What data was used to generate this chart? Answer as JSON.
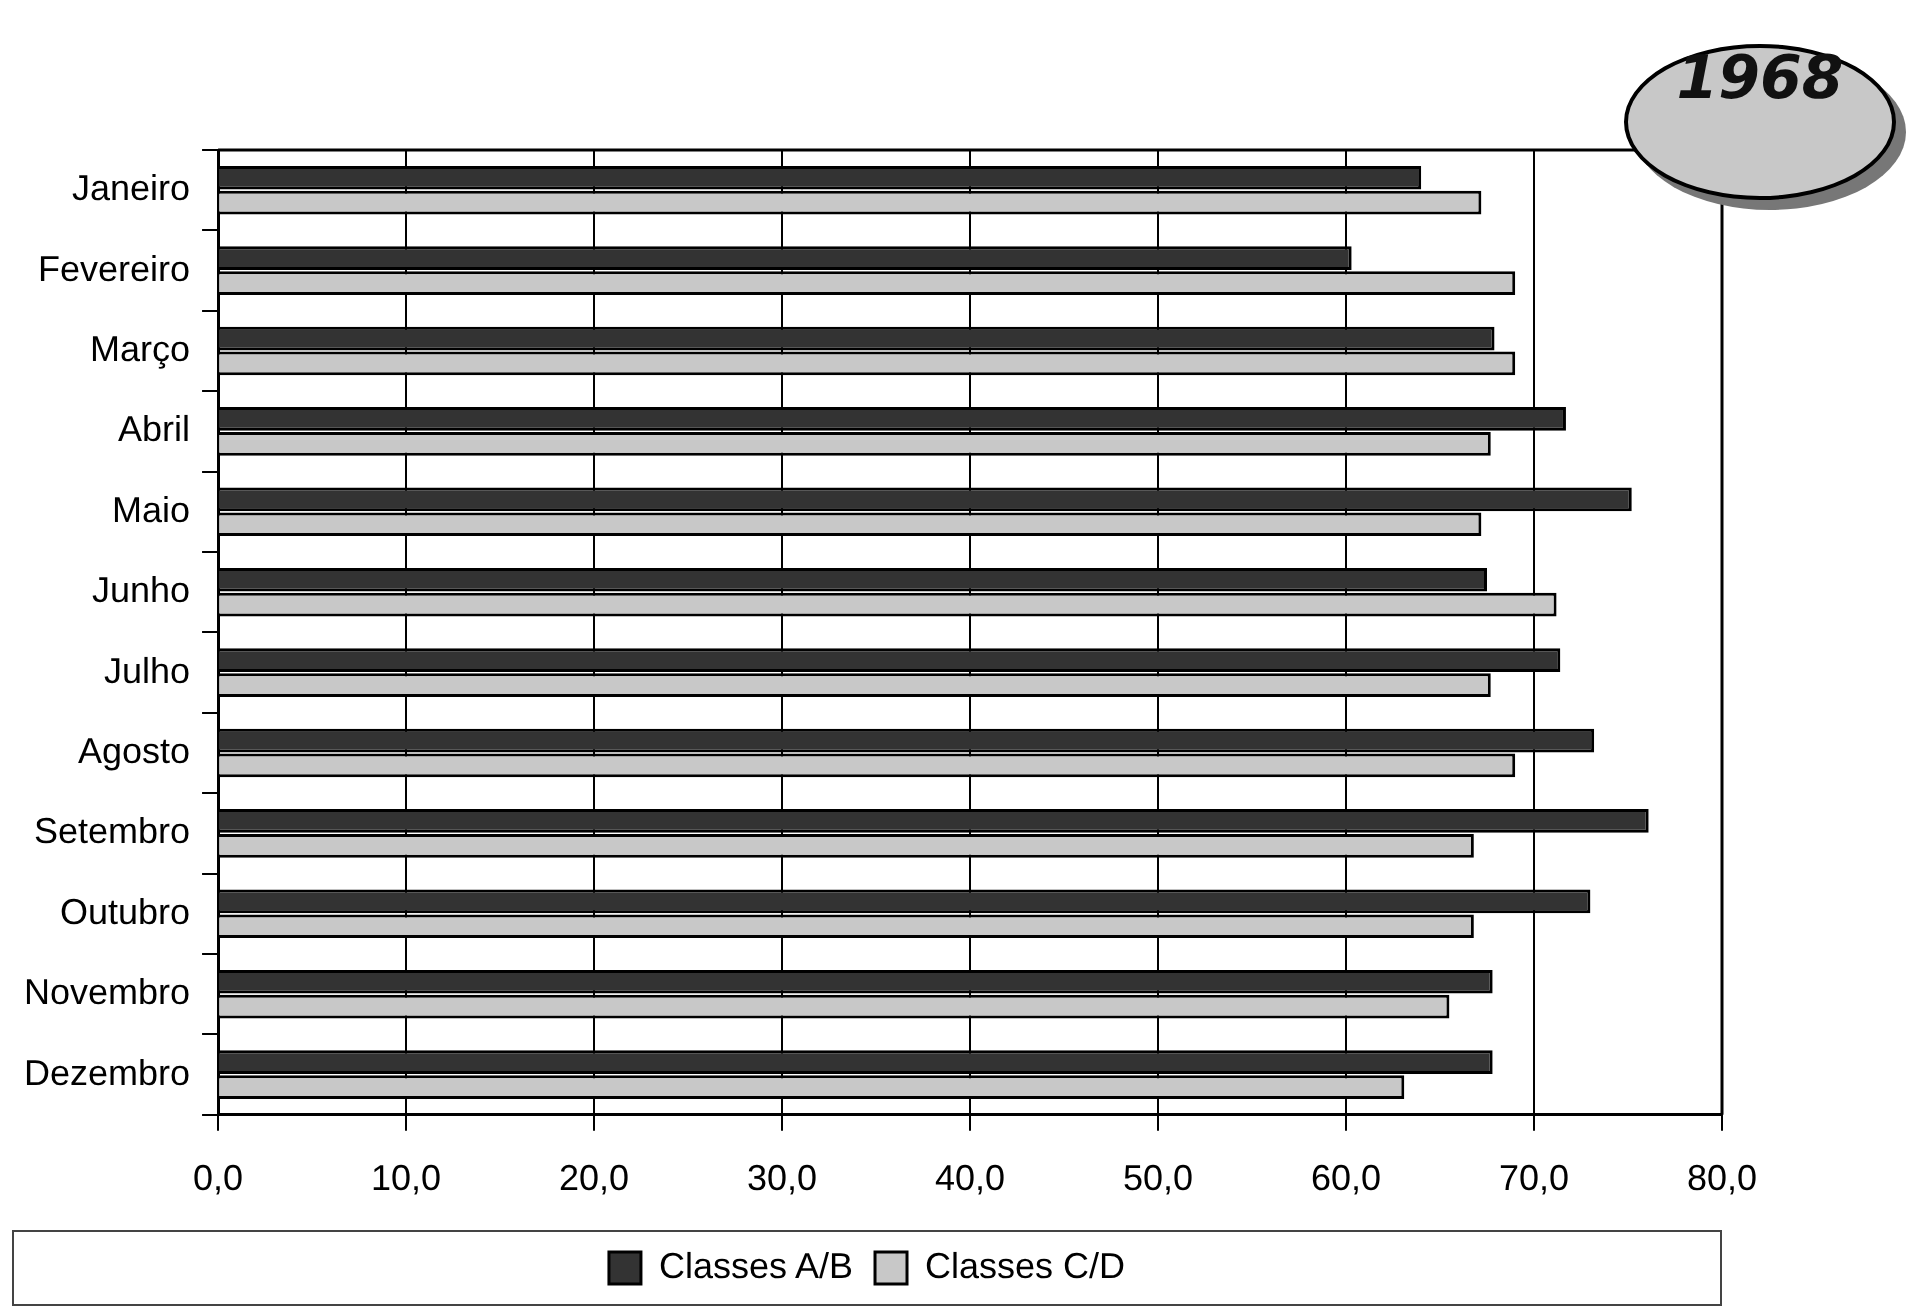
{
  "chart_data": {
    "type": "bar",
    "orientation": "horizontal",
    "title": "1968",
    "categories": [
      "Janeiro",
      "Fevereiro",
      "Março",
      "Abril",
      "Maio",
      "Junho",
      "Julho",
      "Agosto",
      "Setembro",
      "Outubro",
      "Novembro",
      "Dezembro"
    ],
    "series": [
      {
        "name": "Classes A/B",
        "color": "#333333",
        "values": [
          64.0,
          60.3,
          67.9,
          71.7,
          75.2,
          67.5,
          71.4,
          73.2,
          76.1,
          73.0,
          67.8,
          67.8
        ]
      },
      {
        "name": "Classes C/D",
        "color": "#c8c8c8",
        "values": [
          67.2,
          69.0,
          69.0,
          67.7,
          67.2,
          71.2,
          67.7,
          69.0,
          66.8,
          66.8,
          65.5,
          63.1
        ]
      }
    ],
    "xlim": [
      0,
      80
    ],
    "xticks": [
      {
        "value": 0,
        "label": "0,0"
      },
      {
        "value": 10,
        "label": "10,0"
      },
      {
        "value": 20,
        "label": "20,0"
      },
      {
        "value": 30,
        "label": "30,0"
      },
      {
        "value": 40,
        "label": "40,0"
      },
      {
        "value": 50,
        "label": "50,0"
      },
      {
        "value": 60,
        "label": "60,0"
      },
      {
        "value": 70,
        "label": "70,0"
      },
      {
        "value": 80,
        "label": "80,0"
      }
    ],
    "grid": "x",
    "legend": "bottom"
  }
}
